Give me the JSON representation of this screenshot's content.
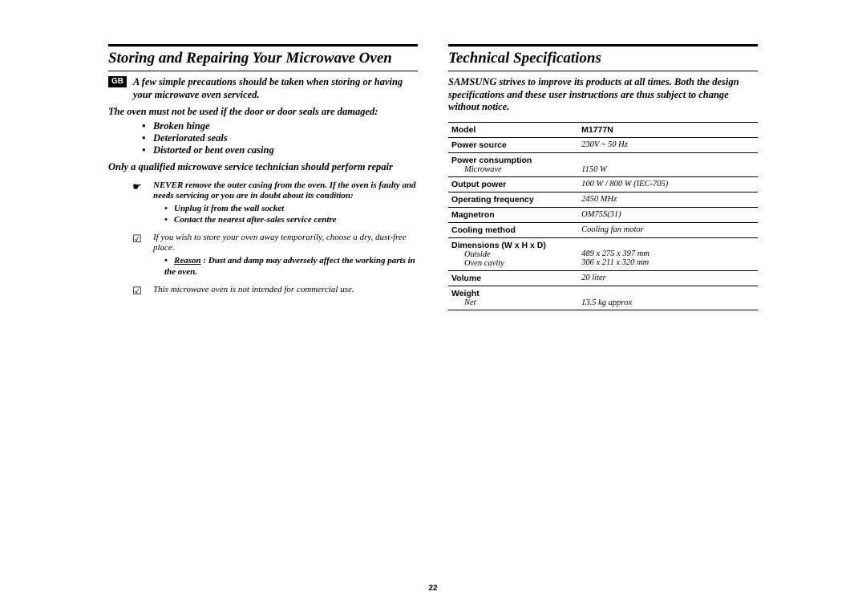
{
  "page_number": "22",
  "left": {
    "title": "Storing and Repairing Your Microwave Oven",
    "gb": "GB",
    "lead": "A few simple precautions should be taken when storing or having your microwave oven serviced.",
    "warn": "The oven must not be used if the door or door seals are damaged:",
    "bullets": [
      "Broken hinge",
      "Deteriorated seals",
      "Distorted or bent oven casing"
    ],
    "tech_line": "Only a qualified microwave service technician should perform repair",
    "note1_lead": "NEVER remove the outer casing from the oven. If the oven is faulty and needs servicing or you are in doubt about its condition:",
    "note1_sub": [
      "Unplug it from the wall socket",
      "Contact the nearest after-sales service centre"
    ],
    "note2_lead": "If you wish to store your oven away temporarily, choose a dry, dust-free place.",
    "note2_reason_label": "Reason",
    "note2_reason": " : Dust and damp may adversely affect the working parts in the oven.",
    "note3": "This microwave oven is not intended for commercial use."
  },
  "right": {
    "title": "Technical Specifications",
    "lead": "SAMSUNG strives to improve its products at all times. Both the design specifications and these user instructions are thus subject to change without notice.",
    "rows": [
      {
        "label": "Model",
        "value": "M1777N"
      },
      {
        "label": "Power source",
        "value": "230V ~ 50 Hz"
      },
      {
        "label": "Power consumption",
        "sublabel": "Microwave",
        "value": "1150 W"
      },
      {
        "label": "Output power",
        "value": "100 W / 800 W (IEC-705)"
      },
      {
        "label": "Operating frequency",
        "value": "2450 MHz"
      },
      {
        "label": "Magnetron",
        "value": "OM75S(31)"
      },
      {
        "label": "Cooling method",
        "value": "Cooling fan motor"
      },
      {
        "label": "Dimensions (W x H x D)",
        "sublabel": "Outside",
        "sublabel2": "Oven cavity",
        "value": "489 x 275 x 397 mm",
        "value2": "306 x 211 x 320 mm"
      },
      {
        "label": "Volume",
        "value": "20 liter"
      },
      {
        "label": "Weight",
        "sublabel": "Net",
        "value": "13.5 kg approx"
      }
    ]
  }
}
